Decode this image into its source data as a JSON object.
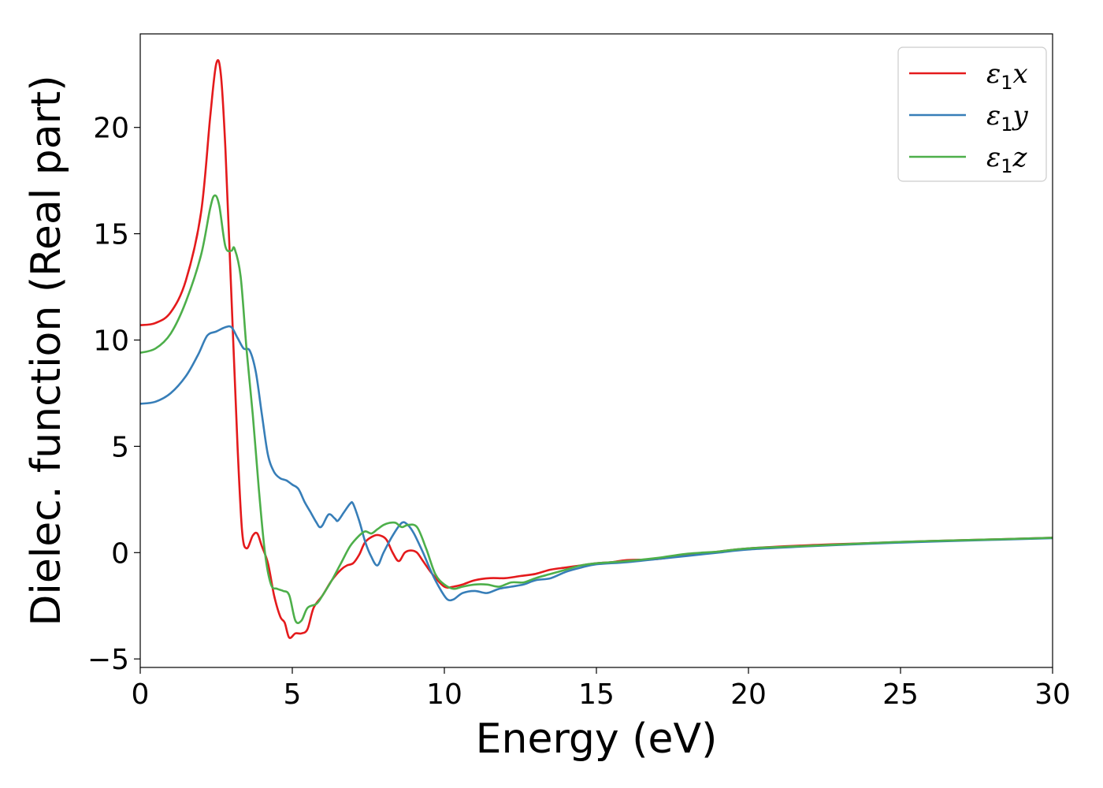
{
  "chart_data": {
    "type": "line",
    "title": "",
    "xlabel": "Energy (eV)",
    "ylabel": "Dielec. function (Real part)",
    "xlim": [
      0,
      30
    ],
    "ylim": [
      -5.4,
      24.4
    ],
    "xticks": [
      0,
      5,
      10,
      15,
      20,
      25,
      30
    ],
    "xtick_labels": [
      "0",
      "5",
      "10",
      "15",
      "20",
      "25",
      "30"
    ],
    "yticks": [
      -5,
      0,
      5,
      10,
      15,
      20
    ],
    "ytick_labels": [
      "−5",
      "0",
      "5",
      "10",
      "15",
      "20"
    ],
    "grid": false,
    "legend_position": "top-right",
    "colors": {
      "x": "#e41a1c",
      "y": "#377eb8",
      "z": "#4daf4a"
    },
    "series": [
      {
        "name": "ε₁x",
        "legend_main": "ε",
        "legend_sub": "1",
        "legend_tail": "x",
        "color": "#e41a1c",
        "points": [
          [
            0,
            10.7
          ],
          [
            0.5,
            10.8
          ],
          [
            1.0,
            11.3
          ],
          [
            1.5,
            12.8
          ],
          [
            2.0,
            16.0
          ],
          [
            2.3,
            20.5
          ],
          [
            2.5,
            23.0
          ],
          [
            2.65,
            22.5
          ],
          [
            2.8,
            19.0
          ],
          [
            3.0,
            12.0
          ],
          [
            3.2,
            5.0
          ],
          [
            3.35,
            1.0
          ],
          [
            3.5,
            0.2
          ],
          [
            3.7,
            0.8
          ],
          [
            3.85,
            0.9
          ],
          [
            4.0,
            0.3
          ],
          [
            4.2,
            -0.5
          ],
          [
            4.4,
            -2.0
          ],
          [
            4.6,
            -3.0
          ],
          [
            4.75,
            -3.3
          ],
          [
            4.9,
            -4.0
          ],
          [
            5.1,
            -3.8
          ],
          [
            5.3,
            -3.8
          ],
          [
            5.5,
            -3.6
          ],
          [
            5.7,
            -2.6
          ],
          [
            6.0,
            -2.0
          ],
          [
            6.3,
            -1.3
          ],
          [
            6.6,
            -0.8
          ],
          [
            6.8,
            -0.6
          ],
          [
            7.0,
            -0.5
          ],
          [
            7.2,
            -0.1
          ],
          [
            7.4,
            0.5
          ],
          [
            7.7,
            0.8
          ],
          [
            7.9,
            0.8
          ],
          [
            8.1,
            0.6
          ],
          [
            8.3,
            0.0
          ],
          [
            8.5,
            -0.4
          ],
          [
            8.7,
            0.0
          ],
          [
            8.9,
            0.1
          ],
          [
            9.1,
            0.0
          ],
          [
            9.3,
            -0.4
          ],
          [
            9.6,
            -1.0
          ],
          [
            10.0,
            -1.6
          ],
          [
            10.3,
            -1.6
          ],
          [
            10.6,
            -1.5
          ],
          [
            11.0,
            -1.3
          ],
          [
            11.5,
            -1.2
          ],
          [
            12.0,
            -1.2
          ],
          [
            12.5,
            -1.1
          ],
          [
            13.0,
            -1.0
          ],
          [
            13.5,
            -0.8
          ],
          [
            14.0,
            -0.7
          ],
          [
            14.5,
            -0.6
          ],
          [
            15.0,
            -0.5
          ],
          [
            15.5,
            -0.45
          ],
          [
            16.0,
            -0.35
          ],
          [
            17.0,
            -0.3
          ],
          [
            18.0,
            -0.1
          ],
          [
            19.0,
            0.05
          ],
          [
            20.0,
            0.2
          ],
          [
            22.0,
            0.35
          ],
          [
            24.0,
            0.45
          ],
          [
            26.0,
            0.55
          ],
          [
            28.0,
            0.62
          ],
          [
            30.0,
            0.7
          ]
        ]
      },
      {
        "name": "ε₁y",
        "legend_main": "ε",
        "legend_sub": "1",
        "legend_tail": "y",
        "color": "#377eb8",
        "points": [
          [
            0,
            7.0
          ],
          [
            0.5,
            7.1
          ],
          [
            1.0,
            7.5
          ],
          [
            1.5,
            8.3
          ],
          [
            1.9,
            9.3
          ],
          [
            2.2,
            10.2
          ],
          [
            2.5,
            10.4
          ],
          [
            2.8,
            10.6
          ],
          [
            3.0,
            10.6
          ],
          [
            3.2,
            10.1
          ],
          [
            3.4,
            9.6
          ],
          [
            3.6,
            9.5
          ],
          [
            3.8,
            8.5
          ],
          [
            4.0,
            6.5
          ],
          [
            4.2,
            4.6
          ],
          [
            4.4,
            3.8
          ],
          [
            4.6,
            3.5
          ],
          [
            4.8,
            3.4
          ],
          [
            5.0,
            3.2
          ],
          [
            5.2,
            3.0
          ],
          [
            5.4,
            2.4
          ],
          [
            5.6,
            1.9
          ],
          [
            5.8,
            1.4
          ],
          [
            5.9,
            1.2
          ],
          [
            6.0,
            1.3
          ],
          [
            6.2,
            1.8
          ],
          [
            6.4,
            1.6
          ],
          [
            6.5,
            1.5
          ],
          [
            6.7,
            1.9
          ],
          [
            6.9,
            2.3
          ],
          [
            7.0,
            2.3
          ],
          [
            7.2,
            1.5
          ],
          [
            7.4,
            0.5
          ],
          [
            7.6,
            -0.2
          ],
          [
            7.8,
            -0.6
          ],
          [
            8.0,
            0.0
          ],
          [
            8.3,
            0.8
          ],
          [
            8.6,
            1.4
          ],
          [
            8.8,
            1.3
          ],
          [
            9.0,
            0.9
          ],
          [
            9.3,
            0.0
          ],
          [
            9.6,
            -1.0
          ],
          [
            9.9,
            -1.8
          ],
          [
            10.1,
            -2.2
          ],
          [
            10.3,
            -2.2
          ],
          [
            10.6,
            -1.9
          ],
          [
            11.0,
            -1.8
          ],
          [
            11.4,
            -1.9
          ],
          [
            11.8,
            -1.7
          ],
          [
            12.2,
            -1.6
          ],
          [
            12.6,
            -1.5
          ],
          [
            13.0,
            -1.3
          ],
          [
            13.5,
            -1.2
          ],
          [
            14.0,
            -0.9
          ],
          [
            14.5,
            -0.7
          ],
          [
            15.0,
            -0.55
          ],
          [
            16.0,
            -0.45
          ],
          [
            17.0,
            -0.3
          ],
          [
            18.0,
            -0.15
          ],
          [
            19.0,
            0.0
          ],
          [
            20.0,
            0.15
          ],
          [
            22.0,
            0.3
          ],
          [
            24.0,
            0.42
          ],
          [
            26.0,
            0.52
          ],
          [
            28.0,
            0.6
          ],
          [
            30.0,
            0.68
          ]
        ]
      },
      {
        "name": "ε₁z",
        "legend_main": "ε",
        "legend_sub": "1",
        "legend_tail": "z",
        "color": "#4daf4a",
        "points": [
          [
            0,
            9.4
          ],
          [
            0.5,
            9.6
          ],
          [
            1.0,
            10.3
          ],
          [
            1.5,
            11.8
          ],
          [
            2.0,
            14.0
          ],
          [
            2.3,
            16.2
          ],
          [
            2.45,
            16.8
          ],
          [
            2.6,
            16.3
          ],
          [
            2.8,
            14.4
          ],
          [
            3.0,
            14.2
          ],
          [
            3.1,
            14.3
          ],
          [
            3.3,
            13.0
          ],
          [
            3.5,
            9.5
          ],
          [
            3.7,
            6.5
          ],
          [
            3.9,
            3.0
          ],
          [
            4.1,
            0.0
          ],
          [
            4.3,
            -1.5
          ],
          [
            4.5,
            -1.7
          ],
          [
            4.7,
            -1.8
          ],
          [
            4.9,
            -2.0
          ],
          [
            5.1,
            -3.2
          ],
          [
            5.3,
            -3.2
          ],
          [
            5.5,
            -2.6
          ],
          [
            5.8,
            -2.4
          ],
          [
            6.0,
            -2.0
          ],
          [
            6.3,
            -1.3
          ],
          [
            6.6,
            -0.5
          ],
          [
            6.9,
            0.3
          ],
          [
            7.2,
            0.8
          ],
          [
            7.4,
            1.0
          ],
          [
            7.6,
            0.9
          ],
          [
            7.8,
            1.1
          ],
          [
            8.0,
            1.3
          ],
          [
            8.2,
            1.4
          ],
          [
            8.4,
            1.4
          ],
          [
            8.6,
            1.2
          ],
          [
            8.8,
            1.3
          ],
          [
            9.1,
            1.2
          ],
          [
            9.4,
            0.2
          ],
          [
            9.7,
            -1.0
          ],
          [
            10.0,
            -1.5
          ],
          [
            10.3,
            -1.7
          ],
          [
            10.6,
            -1.6
          ],
          [
            11.0,
            -1.5
          ],
          [
            11.4,
            -1.5
          ],
          [
            11.8,
            -1.6
          ],
          [
            12.2,
            -1.4
          ],
          [
            12.6,
            -1.4
          ],
          [
            13.0,
            -1.2
          ],
          [
            13.5,
            -1.0
          ],
          [
            14.0,
            -0.8
          ],
          [
            14.5,
            -0.6
          ],
          [
            15.0,
            -0.5
          ],
          [
            16.0,
            -0.4
          ],
          [
            17.0,
            -0.25
          ],
          [
            18.0,
            -0.05
          ],
          [
            19.0,
            0.05
          ],
          [
            20.0,
            0.2
          ],
          [
            22.0,
            0.32
          ],
          [
            24.0,
            0.45
          ],
          [
            26.0,
            0.55
          ],
          [
            28.0,
            0.62
          ],
          [
            30.0,
            0.7
          ]
        ]
      }
    ]
  }
}
